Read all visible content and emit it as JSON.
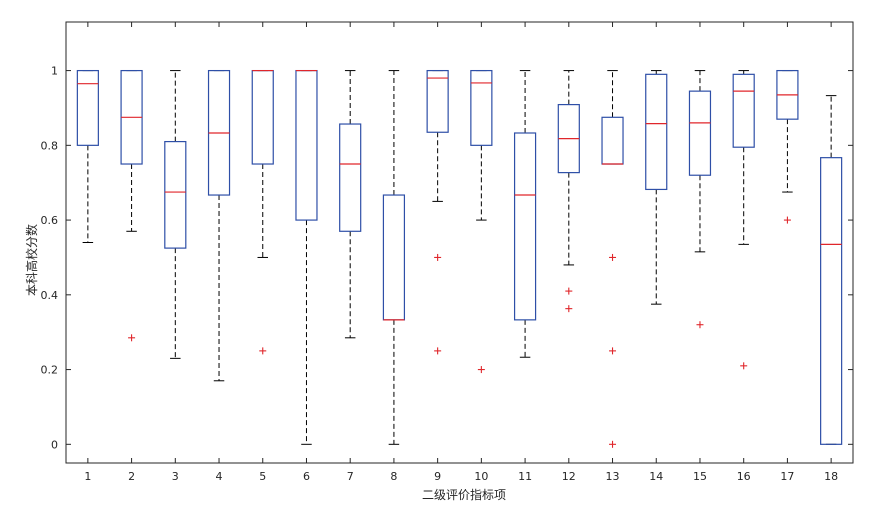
{
  "chart_data": {
    "type": "boxplot",
    "xlabel": "二级评价指标项",
    "ylabel": "本科高校分数",
    "ylim": [
      -0.05,
      1.13
    ],
    "yticks": [
      0,
      0.2,
      0.4,
      0.6,
      0.8,
      1
    ],
    "ytick_labels": [
      "0",
      "0.2",
      "0.4",
      "0.6",
      "0.8",
      "1"
    ],
    "categories": [
      "1",
      "2",
      "3",
      "4",
      "5",
      "6",
      "7",
      "8",
      "9",
      "10",
      "11",
      "12",
      "13",
      "14",
      "15",
      "16",
      "17",
      "18"
    ],
    "boxes": [
      {
        "category": "1",
        "whisker_low": 0.54,
        "q1": 0.8,
        "median": 0.965,
        "q3": 1.0,
        "whisker_high": 1.0,
        "outliers": []
      },
      {
        "category": "2",
        "whisker_low": 0.57,
        "q1": 0.75,
        "median": 0.875,
        "q3": 1.0,
        "whisker_high": 1.0,
        "outliers": [
          0.285
        ]
      },
      {
        "category": "3",
        "whisker_low": 0.23,
        "q1": 0.525,
        "median": 0.675,
        "q3": 0.81,
        "whisker_high": 1.0,
        "outliers": []
      },
      {
        "category": "4",
        "whisker_low": 0.17,
        "q1": 0.667,
        "median": 0.833,
        "q3": 1.0,
        "whisker_high": 1.0,
        "outliers": []
      },
      {
        "category": "5",
        "whisker_low": 0.5,
        "q1": 0.75,
        "median": 1.0,
        "q3": 1.0,
        "whisker_high": 1.0,
        "outliers": [
          0.25
        ]
      },
      {
        "category": "6",
        "whisker_low": 0.0,
        "q1": 0.6,
        "median": 1.0,
        "q3": 1.0,
        "whisker_high": 1.0,
        "outliers": []
      },
      {
        "category": "7",
        "whisker_low": 0.285,
        "q1": 0.57,
        "median": 0.75,
        "q3": 0.857,
        "whisker_high": 1.0,
        "outliers": []
      },
      {
        "category": "8",
        "whisker_low": 0.0,
        "q1": 0.333,
        "median": 0.333,
        "q3": 0.667,
        "whisker_high": 1.0,
        "outliers": []
      },
      {
        "category": "9",
        "whisker_low": 0.65,
        "q1": 0.835,
        "median": 0.98,
        "q3": 1.0,
        "whisker_high": 1.0,
        "outliers": [
          0.5,
          0.25
        ]
      },
      {
        "category": "10",
        "whisker_low": 0.6,
        "q1": 0.8,
        "median": 0.967,
        "q3": 1.0,
        "whisker_high": 1.0,
        "outliers": [
          0.2
        ]
      },
      {
        "category": "11",
        "whisker_low": 0.233,
        "q1": 0.333,
        "median": 0.667,
        "q3": 0.833,
        "whisker_high": 1.0,
        "outliers": []
      },
      {
        "category": "12",
        "whisker_low": 0.48,
        "q1": 0.727,
        "median": 0.818,
        "q3": 0.909,
        "whisker_high": 1.0,
        "outliers": [
          0.41,
          0.363
        ]
      },
      {
        "category": "13",
        "whisker_low": 0.75,
        "q1": 0.75,
        "median": 0.75,
        "q3": 0.875,
        "whisker_high": 1.0,
        "outliers": [
          0.5,
          0.25,
          0.0
        ]
      },
      {
        "category": "14",
        "whisker_low": 0.375,
        "q1": 0.682,
        "median": 0.858,
        "q3": 0.99,
        "whisker_high": 1.0,
        "outliers": []
      },
      {
        "category": "15",
        "whisker_low": 0.515,
        "q1": 0.72,
        "median": 0.86,
        "q3": 0.945,
        "whisker_high": 1.0,
        "outliers": [
          0.32
        ]
      },
      {
        "category": "16",
        "whisker_low": 0.535,
        "q1": 0.795,
        "median": 0.945,
        "q3": 0.99,
        "whisker_high": 1.0,
        "outliers": [
          0.21
        ]
      },
      {
        "category": "17",
        "whisker_low": 0.675,
        "q1": 0.87,
        "median": 0.935,
        "q3": 1.0,
        "whisker_high": 1.0,
        "outliers": [
          0.6
        ]
      },
      {
        "category": "18",
        "whisker_low": 0.0,
        "q1": 0.0,
        "median": 0.535,
        "q3": 0.767,
        "whisker_high": 0.933,
        "outliers": []
      }
    ],
    "colors": {
      "box": "#2e4fa7",
      "median": "#e0262b",
      "whisker": "#000000",
      "outlier": "#e0262b",
      "axis": "#262626"
    },
    "grid": false,
    "legend": "none"
  }
}
